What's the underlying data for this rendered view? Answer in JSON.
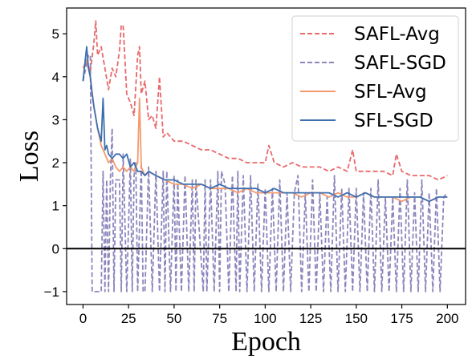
{
  "chart_data": {
    "type": "line",
    "title": "",
    "xlabel": "Epoch",
    "ylabel": "Loss",
    "xlim": [
      -9,
      210
    ],
    "ylim": [
      -1.3,
      5.6
    ],
    "xticks": [
      0,
      25,
      50,
      75,
      100,
      125,
      150,
      175,
      200
    ],
    "yticks": [
      -1,
      0,
      1,
      2,
      3,
      4,
      5
    ],
    "grid": false,
    "legend": "upper right",
    "hline": 0,
    "series": [
      {
        "name": "SAFL-Avg",
        "color": "#e8696b",
        "dash": "dashed",
        "x": [
          0,
          2,
          4,
          6,
          7,
          8,
          10,
          12,
          14,
          16,
          18,
          20,
          21,
          22,
          24,
          26,
          28,
          30,
          31,
          32,
          34,
          36,
          38,
          40,
          42,
          44,
          46,
          48,
          50,
          55,
          60,
          65,
          70,
          75,
          80,
          85,
          90,
          95,
          100,
          102,
          105,
          110,
          115,
          120,
          125,
          130,
          135,
          140,
          145,
          148,
          150,
          155,
          160,
          165,
          170,
          172,
          175,
          180,
          185,
          190,
          195,
          200
        ],
        "values": [
          3.9,
          4.4,
          4.1,
          4.8,
          5.3,
          4.5,
          4.7,
          4.2,
          3.7,
          4.2,
          4.0,
          4.6,
          5.2,
          5.2,
          3.6,
          3.4,
          3.1,
          4.5,
          4.7,
          3.6,
          3.9,
          3.0,
          3.1,
          2.8,
          4.0,
          2.6,
          2.7,
          2.6,
          2.5,
          2.5,
          2.4,
          2.3,
          2.3,
          2.2,
          2.1,
          2.1,
          2.0,
          2.0,
          2.0,
          2.4,
          2.0,
          1.9,
          2.0,
          1.9,
          1.9,
          1.9,
          1.8,
          1.9,
          1.8,
          2.3,
          1.8,
          1.8,
          1.8,
          1.8,
          1.7,
          2.2,
          1.8,
          1.7,
          1.7,
          1.7,
          1.6,
          1.7
        ]
      },
      {
        "name": "SAFL-SGD",
        "color": "#8c86bd",
        "dash": "dashed",
        "x": [
          0,
          2,
          3,
          4,
          5,
          8,
          10,
          11,
          12,
          13,
          14,
          15,
          16,
          17,
          18,
          20,
          21,
          22,
          24,
          26,
          27,
          28,
          29,
          30,
          32,
          33,
          34,
          36,
          38,
          40,
          42,
          44,
          45,
          46,
          48,
          50,
          51,
          52,
          54,
          56,
          58,
          60,
          61,
          62,
          66,
          67,
          68,
          70,
          72,
          74,
          75,
          76,
          78,
          80,
          82,
          84,
          85,
          86,
          88,
          90,
          92,
          94,
          96,
          98,
          100,
          102,
          104,
          106,
          108,
          110,
          112,
          114,
          116,
          118,
          120,
          122,
          124,
          126,
          128,
          130,
          132,
          134,
          136,
          138,
          140,
          142,
          144,
          146,
          148,
          150,
          152,
          154,
          156,
          158,
          160,
          162,
          164,
          166,
          168,
          170,
          172,
          174,
          176,
          178,
          180,
          182,
          184,
          186,
          188,
          190,
          192,
          194,
          196,
          198,
          200
        ],
        "values": [
          3.9,
          4.3,
          4.5,
          4.5,
          -1.0,
          -1.0,
          -1.0,
          1.8,
          -1.0,
          1.6,
          -1.0,
          1.6,
          2.8,
          -1.0,
          1.6,
          1.6,
          -1.0,
          2.2,
          -1.0,
          2.1,
          -1.0,
          1.7,
          2.0,
          -1.0,
          2.0,
          -1.0,
          -1.0,
          1.9,
          -1.0,
          1.8,
          -1.0,
          1.8,
          -1.0,
          1.8,
          -1.0,
          1.7,
          -1.0,
          1.6,
          -1.0,
          1.7,
          -1.0,
          1.6,
          -1.0,
          1.6,
          -1.0,
          1.6,
          -1.0,
          1.6,
          -1.0,
          1.8,
          -1.0,
          1.8,
          1.5,
          -1.0,
          1.7,
          -1.0,
          1.8,
          -1.0,
          1.7,
          -1.0,
          1.7,
          -1.0,
          1.5,
          -1.0,
          1.4,
          -1.0,
          1.4,
          -1.0,
          1.6,
          -1.0,
          1.3,
          -1.0,
          1.3,
          1.7,
          -1.0,
          1.3,
          -1.0,
          1.6,
          -1.0,
          1.3,
          -1.0,
          1.2,
          -1.0,
          1.7,
          -1.0,
          1.4,
          -1.0,
          1.4,
          -1.0,
          1.4,
          -1.0,
          1.3,
          -1.0,
          1.4,
          -1.0,
          1.6,
          -1.0,
          1.2,
          -1.0,
          1.2,
          -1.0,
          1.4,
          -1.0,
          1.6,
          -1.0,
          1.3,
          -1.0,
          1.6,
          -1.0,
          1.3,
          -1.0,
          1.4,
          -1.0,
          1.2,
          1.3
        ]
      },
      {
        "name": "SFL-Avg",
        "color": "#f59a6e",
        "dash": "solid",
        "x": [
          0,
          2,
          4,
          6,
          8,
          10,
          12,
          14,
          16,
          18,
          20,
          22,
          24,
          26,
          28,
          30,
          31,
          32,
          34,
          36,
          40,
          45,
          50,
          55,
          60,
          65,
          70,
          75,
          80,
          85,
          90,
          95,
          100,
          105,
          110,
          115,
          120,
          125,
          130,
          135,
          140,
          145,
          150,
          155,
          160,
          165,
          170,
          175,
          180,
          185,
          190,
          195,
          200
        ],
        "values": [
          4.2,
          4.4,
          4.0,
          3.3,
          2.8,
          2.4,
          2.2,
          2.0,
          2.1,
          1.9,
          1.8,
          1.9,
          1.8,
          1.9,
          1.8,
          2.0,
          3.5,
          1.9,
          1.7,
          1.8,
          1.7,
          1.6,
          1.5,
          1.5,
          1.4,
          1.5,
          1.4,
          1.4,
          1.4,
          1.3,
          1.4,
          1.3,
          1.3,
          1.3,
          1.3,
          1.3,
          1.2,
          1.3,
          1.3,
          1.2,
          1.3,
          1.2,
          1.2,
          1.3,
          1.2,
          1.2,
          1.2,
          1.1,
          1.2,
          1.2,
          1.1,
          1.2,
          1.2
        ]
      },
      {
        "name": "SFL-SGD",
        "color": "#3c6fb0",
        "dash": "solid",
        "x": [
          0,
          1,
          2,
          3,
          4,
          5,
          6,
          8,
          10,
          11,
          12,
          13,
          14,
          16,
          18,
          20,
          22,
          24,
          26,
          28,
          30,
          32,
          34,
          36,
          40,
          45,
          50,
          55,
          60,
          65,
          70,
          75,
          80,
          85,
          90,
          95,
          100,
          105,
          110,
          115,
          120,
          125,
          130,
          135,
          140,
          145,
          150,
          155,
          160,
          165,
          170,
          175,
          180,
          185,
          190,
          195,
          200
        ],
        "values": [
          3.9,
          4.3,
          4.7,
          4.2,
          4.0,
          3.6,
          3.3,
          2.8,
          2.5,
          3.5,
          2.3,
          2.4,
          2.2,
          2.1,
          2.2,
          2.2,
          2.1,
          2.2,
          1.9,
          2.0,
          1.8,
          1.8,
          1.7,
          1.8,
          1.7,
          1.6,
          1.6,
          1.5,
          1.5,
          1.5,
          1.4,
          1.5,
          1.4,
          1.4,
          1.4,
          1.4,
          1.3,
          1.4,
          1.3,
          1.3,
          1.3,
          1.3,
          1.3,
          1.3,
          1.2,
          1.3,
          1.2,
          1.3,
          1.2,
          1.2,
          1.2,
          1.2,
          1.2,
          1.2,
          1.1,
          1.2,
          1.2
        ]
      }
    ]
  }
}
